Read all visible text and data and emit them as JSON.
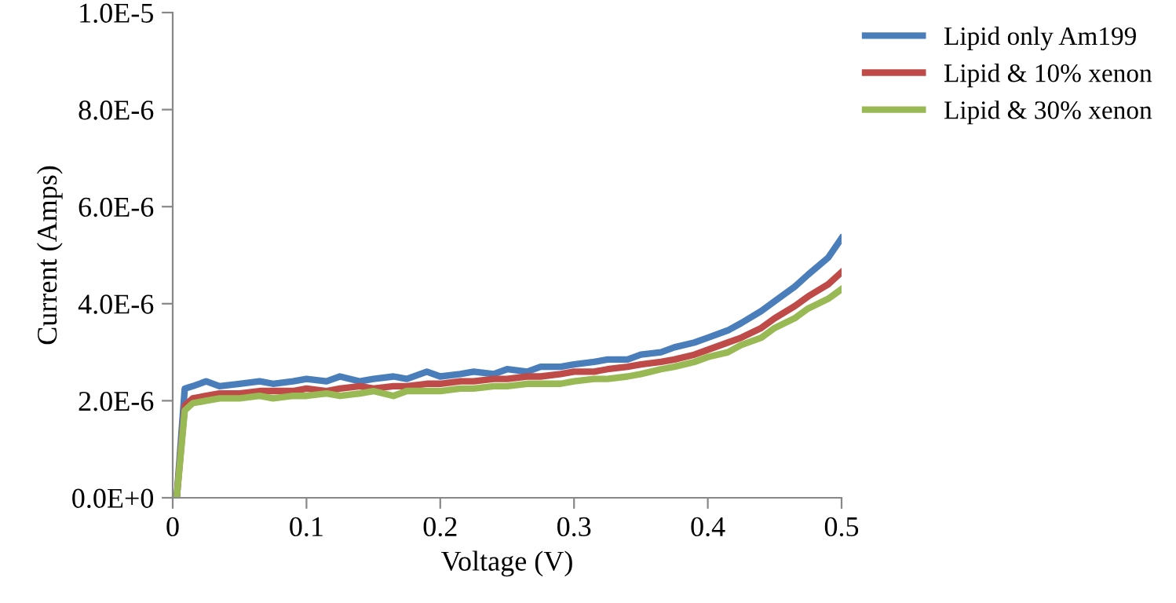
{
  "chart_data": {
    "type": "line",
    "xlabel": "Voltage (V)",
    "ylabel": "Current (Amps)",
    "x": [
      0.003,
      0.009,
      0.015,
      0.025,
      0.035,
      0.05,
      0.065,
      0.075,
      0.09,
      0.1,
      0.115,
      0.125,
      0.14,
      0.15,
      0.165,
      0.175,
      0.19,
      0.2,
      0.215,
      0.225,
      0.24,
      0.25,
      0.265,
      0.275,
      0.29,
      0.3,
      0.315,
      0.325,
      0.34,
      0.35,
      0.365,
      0.375,
      0.39,
      0.4,
      0.415,
      0.425,
      0.44,
      0.45,
      0.465,
      0.475,
      0.49,
      0.5
    ],
    "series": [
      {
        "name": "Lipid only Am199",
        "color": "#4a7ebb",
        "values": [
          0,
          2.25e-06,
          2.3e-06,
          2.4e-06,
          2.3e-06,
          2.35e-06,
          2.4e-06,
          2.35e-06,
          2.4e-06,
          2.45e-06,
          2.4e-06,
          2.5e-06,
          2.4e-06,
          2.45e-06,
          2.5e-06,
          2.45e-06,
          2.6e-06,
          2.5e-06,
          2.55e-06,
          2.6e-06,
          2.55e-06,
          2.65e-06,
          2.6e-06,
          2.7e-06,
          2.7e-06,
          2.75e-06,
          2.8e-06,
          2.85e-06,
          2.85e-06,
          2.95e-06,
          3e-06,
          3.1e-06,
          3.2e-06,
          3.3e-06,
          3.45e-06,
          3.6e-06,
          3.85e-06,
          4.05e-06,
          4.35e-06,
          4.6e-06,
          4.95e-06,
          5.35e-06
        ]
      },
      {
        "name": "Lipid & 10% xenon",
        "color": "#be4b48",
        "values": [
          0,
          1.9e-06,
          2.05e-06,
          2.1e-06,
          2.15e-06,
          2.15e-06,
          2.2e-06,
          2.2e-06,
          2.2e-06,
          2.25e-06,
          2.2e-06,
          2.25e-06,
          2.3e-06,
          2.25e-06,
          2.3e-06,
          2.3e-06,
          2.35e-06,
          2.35e-06,
          2.4e-06,
          2.4e-06,
          2.45e-06,
          2.45e-06,
          2.5e-06,
          2.5e-06,
          2.55e-06,
          2.6e-06,
          2.6e-06,
          2.65e-06,
          2.7e-06,
          2.75e-06,
          2.8e-06,
          2.85e-06,
          2.95e-06,
          3.05e-06,
          3.2e-06,
          3.3e-06,
          3.5e-06,
          3.7e-06,
          3.95e-06,
          4.15e-06,
          4.4e-06,
          4.65e-06
        ]
      },
      {
        "name": "Lipid & 30% xenon",
        "color": "#98b954",
        "values": [
          0,
          1.8e-06,
          1.95e-06,
          2e-06,
          2.05e-06,
          2.05e-06,
          2.1e-06,
          2.05e-06,
          2.1e-06,
          2.1e-06,
          2.15e-06,
          2.1e-06,
          2.15e-06,
          2.2e-06,
          2.1e-06,
          2.2e-06,
          2.2e-06,
          2.2e-06,
          2.25e-06,
          2.25e-06,
          2.3e-06,
          2.3e-06,
          2.35e-06,
          2.35e-06,
          2.35e-06,
          2.4e-06,
          2.45e-06,
          2.45e-06,
          2.5e-06,
          2.55e-06,
          2.65e-06,
          2.7e-06,
          2.8e-06,
          2.9e-06,
          3e-06,
          3.15e-06,
          3.3e-06,
          3.5e-06,
          3.7e-06,
          3.9e-06,
          4.1e-06,
          4.3e-06
        ]
      }
    ],
    "xlim": [
      0,
      0.5
    ],
    "xticks": [
      0,
      0.1,
      0.2,
      0.3,
      0.4,
      0.5
    ],
    "ylim": [
      0,
      1e-05
    ],
    "yticks": [
      {
        "value": 0,
        "label": "0.0E+0"
      },
      {
        "value": 2e-06,
        "label": "2.0E-6"
      },
      {
        "value": 4e-06,
        "label": "4.0E-6"
      },
      {
        "value": 6e-06,
        "label": "6.0E-6"
      },
      {
        "value": 8e-06,
        "label": "8.0E-6"
      },
      {
        "value": 1e-05,
        "label": "1.0E-5"
      }
    ],
    "grid": false,
    "legend": "top right",
    "marker": "none",
    "line_style": "solid"
  }
}
